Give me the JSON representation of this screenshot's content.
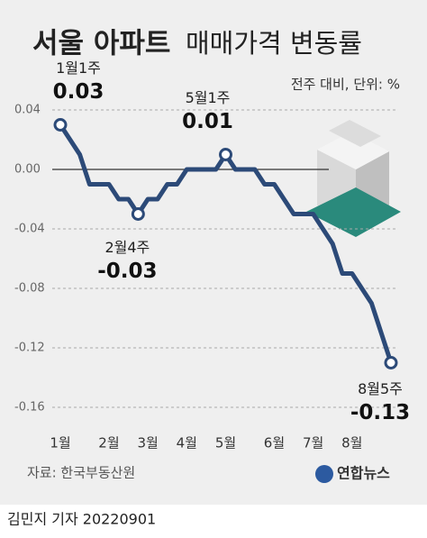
{
  "chart_data": {
    "type": "line",
    "title_bold": "서울 아파트",
    "title": "매매가격 변동률",
    "subtitle": "전주 대비, 단위: %",
    "categories": [
      "1월",
      null,
      null,
      null,
      null,
      "2월",
      null,
      null,
      null,
      "3월",
      null,
      null,
      null,
      "4월",
      null,
      null,
      null,
      "5월",
      null,
      null,
      null,
      null,
      "6월",
      null,
      null,
      null,
      "7월",
      null,
      null,
      null,
      "8월",
      null,
      null,
      null,
      null
    ],
    "series": [
      {
        "name": "서울 아파트 매매가격 변동률",
        "color": "#2c4a78",
        "values": [
          0.03,
          0.02,
          0.01,
          -0.01,
          -0.01,
          -0.01,
          -0.02,
          -0.02,
          -0.03,
          -0.02,
          -0.02,
          -0.01,
          -0.01,
          0.0,
          0.0,
          0.0,
          0.0,
          0.01,
          0.0,
          0.0,
          0.0,
          -0.01,
          -0.01,
          -0.02,
          -0.03,
          -0.03,
          -0.03,
          -0.04,
          -0.05,
          -0.07,
          -0.07,
          -0.08,
          -0.09,
          -0.11,
          -0.13
        ]
      }
    ],
    "annotations": [
      "1월1주",
      "2월4주",
      "5월1주",
      "8월5주"
    ],
    "ylim": [
      -0.16,
      0.04
    ],
    "yticks": [
      {
        "value": 0.04,
        "label": "0.04"
      },
      {
        "value": 0,
        "label": "0.00"
      },
      {
        "value": -0.04,
        "label": "-0.04"
      },
      {
        "value": -0.08,
        "label": "-0.08"
      },
      {
        "value": -0.12,
        "label": "-0.12"
      },
      {
        "value": -0.16,
        "label": "-0.16"
      }
    ],
    "grid": true,
    "source": "자료: 한국부동산원",
    "logo": "연합뉴스",
    "byline": "김민지 기자  20220901"
  }
}
